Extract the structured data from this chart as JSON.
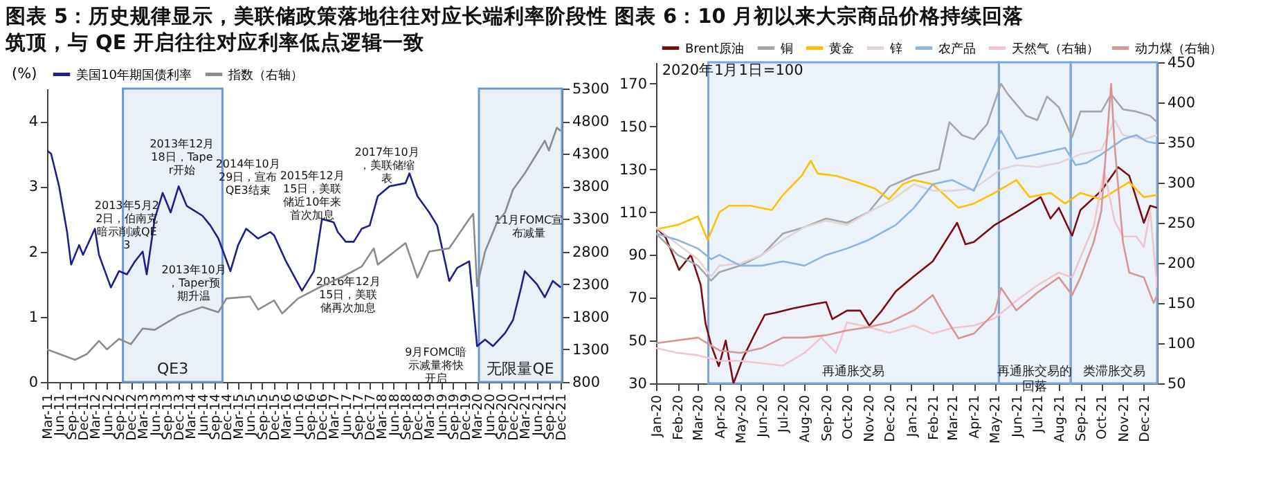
{
  "chart_data": [
    {
      "type": "line",
      "title": "图表 5：历史规律显示，美联储政策落地往往对应长端利率阶段性筑顶，与 QE 开启往往对应利率低点逻辑一致",
      "ylabel": "(%)",
      "legend": "top",
      "xlim": [
        "2011-03-01",
        "2021-12-10"
      ],
      "ylim": [
        0,
        4.5
      ],
      "yticks": [
        0,
        1,
        2,
        3,
        4
      ],
      "y2lim": [
        800,
        5300
      ],
      "y2ticks": [
        800,
        1300,
        1800,
        2300,
        2800,
        3300,
        3800,
        4300,
        4800,
        5300
      ],
      "xticks": [
        {
          "value": "2011-03",
          "label": "Mar-11"
        },
        {
          "value": "2011-06",
          "label": "Jun-11"
        },
        {
          "value": "2011-09",
          "label": "Sep-11"
        },
        {
          "value": "2011-12",
          "label": "Dec-11"
        },
        {
          "value": "2012-03",
          "label": "Mar-12"
        },
        {
          "value": "2012-06",
          "label": "Jun-12"
        },
        {
          "value": "2012-09",
          "label": "Sep-12"
        },
        {
          "value": "2012-12",
          "label": "Dec-12"
        },
        {
          "value": "2013-03",
          "label": "Mar-13"
        },
        {
          "value": "2013-06",
          "label": "Jun-13"
        },
        {
          "value": "2013-09",
          "label": "Sep-13"
        },
        {
          "value": "2013-12",
          "label": "Dec-13"
        },
        {
          "value": "2014-03",
          "label": "Mar-14"
        },
        {
          "value": "2014-06",
          "label": "Jun-14"
        },
        {
          "value": "2014-09",
          "label": "Sep-14"
        },
        {
          "value": "2014-12",
          "label": "Dec-14"
        },
        {
          "value": "2015-03",
          "label": "Mar-15"
        },
        {
          "value": "2015-06",
          "label": "Jun-15"
        },
        {
          "value": "2015-09",
          "label": "Sep-15"
        },
        {
          "value": "2015-12",
          "label": "Dec-15"
        },
        {
          "value": "2016-03",
          "label": "Mar-16"
        },
        {
          "value": "2016-06",
          "label": "Jun-16"
        },
        {
          "value": "2016-09",
          "label": "Sep-16"
        },
        {
          "value": "2016-12",
          "label": "Dec-16"
        },
        {
          "value": "2017-03",
          "label": "Mar-17"
        },
        {
          "value": "2017-06",
          "label": "Jun-17"
        },
        {
          "value": "2017-09",
          "label": "Sep-17"
        },
        {
          "value": "2017-12",
          "label": "Dec-17"
        },
        {
          "value": "2018-03",
          "label": "Mar-18"
        },
        {
          "value": "2018-06",
          "label": "Jun-18"
        },
        {
          "value": "2018-09",
          "label": "Sep-18"
        },
        {
          "value": "2018-12",
          "label": "Dec-18"
        },
        {
          "value": "2019-03",
          "label": "Mar-19"
        },
        {
          "value": "2019-06",
          "label": "Jun-19"
        },
        {
          "value": "2019-09",
          "label": "Sep-19"
        },
        {
          "value": "2019-12",
          "label": "Dec-19"
        },
        {
          "value": "2020-03",
          "label": "Mar-20"
        },
        {
          "value": "2020-06",
          "label": "Jun-20"
        },
        {
          "value": "2020-09",
          "label": "Sep-20"
        },
        {
          "value": "2020-12",
          "label": "Dec-20"
        },
        {
          "value": "2021-03",
          "label": "Mar-21"
        },
        {
          "value": "2021-06",
          "label": "Jun-21"
        },
        {
          "value": "2021-09",
          "label": "Sep-21"
        },
        {
          "value": "2021-12",
          "label": "Dec-21"
        }
      ],
      "bands": [
        {
          "axis": "x",
          "from": "2012-10-01",
          "to": "2014-11-01",
          "label": "QE3",
          "color": "#6f97cf"
        },
        {
          "axis": "x",
          "from": "2020-03-15",
          "to": "2021-12-10",
          "label": "无限量QE",
          "color": "#6f97cf"
        }
      ],
      "series": [
        {
          "name": "美国10年期国债利率",
          "color": "#1f1f8c",
          "x": [
            "2011-03",
            "2011-04",
            "2011-06",
            "2011-08",
            "2011-09",
            "2011-11",
            "2011-12",
            "2012-03",
            "2012-04",
            "2012-07",
            "2012-09",
            "2012-11",
            "2013-01",
            "2013-03",
            "2013-04",
            "2013-06",
            "2013-08",
            "2013-10",
            "2013-12",
            "2014-02",
            "2014-06",
            "2014-08",
            "2014-10",
            "2015-01",
            "2015-03",
            "2015-05",
            "2015-08",
            "2015-11",
            "2015-12",
            "2016-03",
            "2016-07",
            "2016-10",
            "2016-12",
            "2017-03",
            "2017-04",
            "2017-06",
            "2017-08",
            "2017-10",
            "2017-12",
            "2018-02",
            "2018-05",
            "2018-09",
            "2018-10",
            "2018-12",
            "2019-03",
            "2019-05",
            "2019-08",
            "2019-10",
            "2020-01",
            "2020-03",
            "2020-05",
            "2020-07",
            "2020-10",
            "2020-12",
            "2021-02",
            "2021-03",
            "2021-06",
            "2021-08",
            "2021-10",
            "2021-12"
          ],
          "values": [
            3.55,
            3.5,
            3.0,
            2.3,
            1.8,
            2.1,
            1.95,
            2.35,
            1.95,
            1.45,
            1.7,
            1.65,
            1.85,
            2.0,
            1.65,
            2.5,
            2.9,
            2.6,
            3.0,
            2.7,
            2.55,
            2.4,
            2.2,
            1.7,
            2.1,
            2.35,
            2.2,
            2.3,
            2.25,
            1.85,
            1.4,
            1.7,
            2.5,
            2.45,
            2.3,
            2.15,
            2.15,
            2.35,
            2.4,
            2.85,
            3.0,
            3.05,
            3.2,
            2.85,
            2.6,
            2.4,
            1.55,
            1.75,
            1.85,
            0.55,
            0.65,
            0.55,
            0.75,
            0.95,
            1.45,
            1.7,
            1.5,
            1.3,
            1.55,
            1.45
          ]
        },
        {
          "name": "指数（右轴）",
          "color": "#8c8c8c",
          "axis": "y2",
          "x": [
            "2011-03",
            "2011-10",
            "2012-01",
            "2012-04",
            "2012-06",
            "2012-09",
            "2012-12",
            "2013-03",
            "2013-06",
            "2013-12",
            "2014-06",
            "2014-10",
            "2014-12",
            "2015-06",
            "2015-08",
            "2015-12",
            "2016-02",
            "2016-06",
            "2016-12",
            "2017-06",
            "2017-10",
            "2018-01",
            "2018-02",
            "2018-09",
            "2018-12",
            "2019-03",
            "2019-08",
            "2020-01",
            "2020-02",
            "2020-03",
            "2020-05",
            "2020-08",
            "2020-10",
            "2020-12",
            "2021-03",
            "2021-06",
            "2021-08",
            "2021-09",
            "2021-11",
            "2021-12"
          ],
          "values": [
            1300,
            1140,
            1230,
            1430,
            1300,
            1460,
            1380,
            1620,
            1600,
            1820,
            1950,
            1870,
            2080,
            2110,
            1910,
            2050,
            1850,
            2080,
            2270,
            2440,
            2570,
            2850,
            2600,
            2930,
            2400,
            2800,
            2850,
            3300,
            3380,
            2270,
            2800,
            3250,
            3400,
            3750,
            4000,
            4300,
            4500,
            4350,
            4700,
            4650
          ]
        }
      ],
      "annotations": [
        "2013年5月22日，伯南克暗示削减QE3",
        "2013年12月18日，Taper开始",
        "2013年10月，Taper预期升温",
        "2014年10月29日，宣布QE3结束",
        "2015年12月15日，美联储近10年来首次加息",
        "2016年12月15日，美联储再次加息",
        "2017年10月，美联储缩表",
        "11月FOMC宣布减量",
        "9月FOMC暗示减量将快开启"
      ]
    },
    {
      "type": "line",
      "title": "图表 6：10 月初以来大宗商品价格持续回落",
      "legend": "top",
      "xlim": [
        "2020-01-01",
        "2021-12-20"
      ],
      "ylim": [
        30,
        180
      ],
      "yticks": [
        30,
        50,
        70,
        90,
        110,
        130,
        150,
        170
      ],
      "y2lim": [
        50,
        450
      ],
      "y2ticks": [
        50,
        100,
        150,
        200,
        250,
        300,
        350,
        400,
        450
      ],
      "xticks": [
        {
          "value": "2020-01",
          "label": "Jan-20"
        },
        {
          "value": "2020-02",
          "label": "Feb-20"
        },
        {
          "value": "2020-03",
          "label": "Mar-20"
        },
        {
          "value": "2020-04",
          "label": "Apr-20"
        },
        {
          "value": "2020-05",
          "label": "May-20"
        },
        {
          "value": "2020-06",
          "label": "Jun-20"
        },
        {
          "value": "2020-07",
          "label": "Jul-20"
        },
        {
          "value": "2020-08",
          "label": "Aug-20"
        },
        {
          "value": "2020-09",
          "label": "Sep-20"
        },
        {
          "value": "2020-10",
          "label": "Oct-20"
        },
        {
          "value": "2020-11",
          "label": "Nov-20"
        },
        {
          "value": "2020-12",
          "label": "Dec-20"
        },
        {
          "value": "2021-01",
          "label": "Jan-21"
        },
        {
          "value": "2021-02",
          "label": "Feb-21"
        },
        {
          "value": "2021-03",
          "label": "Mar-21"
        },
        {
          "value": "2021-04",
          "label": "Apr-21"
        },
        {
          "value": "2021-05",
          "label": "May-21"
        },
        {
          "value": "2021-06",
          "label": "Jun-21"
        },
        {
          "value": "2021-07",
          "label": "Jul-21"
        },
        {
          "value": "2021-08",
          "label": "Aug-21"
        },
        {
          "value": "2021-09",
          "label": "Sep-21"
        },
        {
          "value": "2021-10",
          "label": "Oct-21"
        },
        {
          "value": "2021-11",
          "label": "Nov-21"
        },
        {
          "value": "2021-12",
          "label": "Dec-21"
        }
      ],
      "bands": [
        {
          "axis": "x",
          "from": "2020-03-16",
          "to": "2021-05-07",
          "label": "再通胀交易",
          "color": "#7ea6d8"
        },
        {
          "axis": "x",
          "from": "2021-05-07",
          "to": "2021-08-18",
          "label": "再通胀交易的回落",
          "color": "#7ea6d8"
        },
        {
          "axis": "x",
          "from": "2021-08-18",
          "to": "2021-12-20",
          "label": "类滞胀交易",
          "color": "#7ea6d8"
        }
      ],
      "series": [
        {
          "name": "Brent原油",
          "color": "#7b0c14",
          "x": [
            "2020-01-01",
            "2020-01-15",
            "2020-02-03",
            "2020-02-20",
            "2020-03-05",
            "2020-03-12",
            "2020-03-20",
            "2020-03-31",
            "2020-04-10",
            "2020-04-21",
            "2020-05-05",
            "2020-05-20",
            "2020-06-05",
            "2020-06-20",
            "2020-07-15",
            "2020-08-15",
            "2020-09-01",
            "2020-09-10",
            "2020-10-01",
            "2020-10-20",
            "2020-11-02",
            "2020-11-20",
            "2020-12-10",
            "2021-01-05",
            "2021-02-01",
            "2021-03-08",
            "2021-03-20",
            "2021-04-01",
            "2021-05-01",
            "2021-06-01",
            "2021-07-06",
            "2021-07-20",
            "2021-08-01",
            "2021-08-20",
            "2021-09-01",
            "2021-10-01",
            "2021-10-25",
            "2021-11-10",
            "2021-12-01",
            "2021-12-10",
            "2021-12-20"
          ],
          "values": [
            103,
            98,
            83,
            90,
            76,
            58,
            48,
            38,
            50,
            30,
            42,
            52,
            62,
            63,
            65,
            67,
            68,
            60,
            64,
            64,
            57,
            64,
            73,
            80,
            87,
            105,
            95,
            96,
            104,
            110,
            117,
            107,
            112,
            99,
            111,
            120,
            131,
            127,
            105,
            113,
            112
          ]
        },
        {
          "name": "铜",
          "color": "#a6a6a6",
          "x": [
            "2020-01-01",
            "2020-02-01",
            "2020-03-01",
            "2020-03-20",
            "2020-04-01",
            "2020-05-01",
            "2020-06-01",
            "2020-07-01",
            "2020-08-01",
            "2020-09-01",
            "2020-10-01",
            "2020-11-01",
            "2020-12-01",
            "2021-01-05",
            "2021-02-10",
            "2021-02-25",
            "2021-03-15",
            "2021-04-01",
            "2021-04-20",
            "2021-05-10",
            "2021-05-20",
            "2021-06-15",
            "2021-07-01",
            "2021-07-15",
            "2021-08-01",
            "2021-08-20",
            "2021-09-01",
            "2021-10-01",
            "2021-10-15",
            "2021-11-01",
            "2021-11-20",
            "2021-12-10",
            "2021-12-20"
          ],
          "values": [
            100,
            90,
            85,
            78,
            82,
            85,
            90,
            100,
            103,
            107,
            105,
            110,
            122,
            127,
            130,
            152,
            146,
            144,
            151,
            170,
            165,
            155,
            153,
            164,
            159,
            145,
            157,
            157,
            165,
            158,
            157,
            155,
            152
          ]
        },
        {
          "name": "黄金",
          "color": "#ffc000",
          "x": [
            "2020-01-01",
            "2020-02-01",
            "2020-03-01",
            "2020-03-15",
            "2020-04-01",
            "2020-04-15",
            "2020-05-15",
            "2020-06-15",
            "2020-07-01",
            "2020-07-28",
            "2020-08-10",
            "2020-08-20",
            "2020-09-15",
            "2020-10-15",
            "2020-11-10",
            "2020-11-30",
            "2020-12-20",
            "2021-01-05",
            "2021-02-01",
            "2021-03-10",
            "2021-04-01",
            "2021-05-01",
            "2021-06-01",
            "2021-06-20",
            "2021-07-20",
            "2021-08-10",
            "2021-09-01",
            "2021-10-01",
            "2021-11-10",
            "2021-12-01",
            "2021-12-20"
          ],
          "values": [
            102,
            104,
            108,
            97,
            110,
            113,
            113,
            111,
            118,
            127,
            134,
            128,
            127,
            124,
            121,
            116,
            123,
            125,
            123,
            112,
            114,
            119,
            125,
            117,
            119,
            114,
            119,
            116,
            124,
            117,
            118
          ]
        },
        {
          "name": "锌",
          "color": "#e3d3d6",
          "x": [
            "2020-01-01",
            "2020-02-01",
            "2020-03-01",
            "2020-03-20",
            "2020-04-01",
            "2020-05-01",
            "2020-06-01",
            "2020-07-01",
            "2020-08-01",
            "2020-09-01",
            "2020-10-01",
            "2020-11-01",
            "2020-12-01",
            "2021-01-05",
            "2021-02-01",
            "2021-03-01",
            "2021-04-01",
            "2021-05-10",
            "2021-06-01",
            "2021-07-01",
            "2021-08-01",
            "2021-09-01",
            "2021-10-01",
            "2021-10-20",
            "2021-11-01",
            "2021-12-01",
            "2021-12-20"
          ],
          "values": [
            103,
            95,
            88,
            80,
            85,
            86,
            90,
            97,
            103,
            106,
            104,
            110,
            115,
            123,
            120,
            120,
            121,
            130,
            132,
            131,
            133,
            137,
            139,
            153,
            146,
            144,
            146
          ]
        },
        {
          "name": "农产品",
          "color": "#8db4e2",
          "x": [
            "2020-01-01",
            "2020-02-01",
            "2020-03-01",
            "2020-03-20",
            "2020-04-01",
            "2020-05-01",
            "2020-06-01",
            "2020-07-01",
            "2020-08-01",
            "2020-09-01",
            "2020-10-01",
            "2020-11-01",
            "2020-12-10",
            "2021-01-05",
            "2021-02-01",
            "2021-03-01",
            "2021-04-01",
            "2021-05-10",
            "2021-06-01",
            "2021-07-01",
            "2021-08-10",
            "2021-08-25",
            "2021-09-10",
            "2021-10-01",
            "2021-11-01",
            "2021-11-20",
            "2021-12-05",
            "2021-12-20"
          ],
          "values": [
            100,
            97,
            93,
            88,
            90,
            85,
            85,
            87,
            85,
            90,
            93,
            97,
            104,
            112,
            123,
            125,
            120,
            148,
            135,
            137,
            140,
            132,
            133,
            137,
            144,
            146,
            143,
            142
          ]
        },
        {
          "name": "天然气（右轴）",
          "color": "#f2c4cb",
          "axis": "y2",
          "x": [
            "2020-01-01",
            "2020-02-01",
            "2020-03-01",
            "2020-04-01",
            "2020-05-01",
            "2020-06-01",
            "2020-07-01",
            "2020-08-01",
            "2020-08-25",
            "2020-09-15",
            "2020-10-01",
            "2020-11-01",
            "2020-12-01",
            "2021-01-05",
            "2021-02-01",
            "2021-03-01",
            "2021-04-01",
            "2021-05-01",
            "2021-06-01",
            "2021-07-01",
            "2021-08-01",
            "2021-08-20",
            "2021-09-01",
            "2021-09-20",
            "2021-10-05",
            "2021-10-20",
            "2021-11-01",
            "2021-11-20",
            "2021-12-01",
            "2021-12-10",
            "2021-12-20"
          ],
          "values": [
            94,
            88,
            85,
            78,
            78,
            75,
            72,
            88,
            107,
            88,
            126,
            120,
            113,
            122,
            112,
            119,
            122,
            131,
            153,
            172,
            188,
            182,
            207,
            246,
            315,
            252,
            233,
            233,
            220,
            265,
            169
          ]
        },
        {
          "name": "动力煤（右轴）",
          "color": "#d99594",
          "axis": "y2",
          "x": [
            "2020-01-01",
            "2020-03-01",
            "2020-04-01",
            "2020-05-01",
            "2020-06-01",
            "2020-07-01",
            "2020-08-01",
            "2020-09-01",
            "2020-10-01",
            "2020-11-01",
            "2020-12-01",
            "2021-01-05",
            "2021-02-01",
            "2021-02-15",
            "2021-03-10",
            "2021-04-01",
            "2021-05-01",
            "2021-05-10",
            "2021-06-01",
            "2021-07-01",
            "2021-08-01",
            "2021-08-20",
            "2021-09-01",
            "2021-09-20",
            "2021-10-01",
            "2021-10-15",
            "2021-10-20",
            "2021-11-01",
            "2021-11-10",
            "2021-12-01",
            "2021-12-15",
            "2021-12-20"
          ],
          "values": [
            100,
            107,
            91,
            88,
            94,
            107,
            107,
            110,
            116,
            120,
            126,
            141,
            160,
            138,
            106,
            112,
            138,
            169,
            141,
            163,
            182,
            160,
            182,
            226,
            265,
            423,
            347,
            226,
            188,
            182,
            150,
            160
          ]
        }
      ],
      "annotations": [
        "2020年1月1日=100"
      ]
    }
  ]
}
